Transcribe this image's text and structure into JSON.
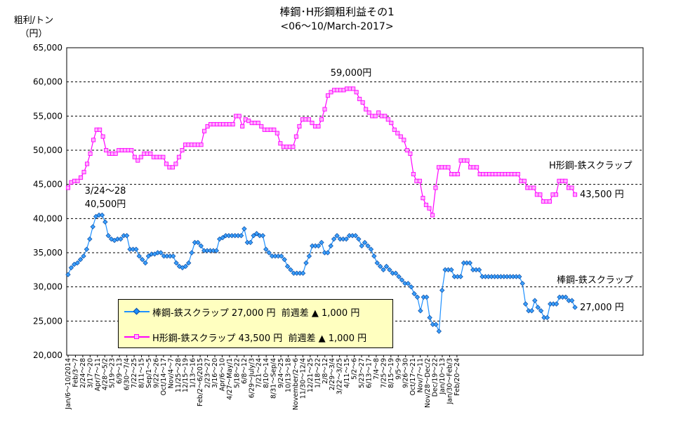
{
  "chart_data": {
    "type": "line",
    "title": "棒鋼･H形鋼粗利益その1",
    "subtitle": "<06～10/March-2017>",
    "ylabel_line1": "粗利/トン",
    "ylabel_line2": "（円）",
    "ylim": [
      20000,
      65000
    ],
    "yticks": [
      "20,000",
      "25,000",
      "30,000",
      "35,000",
      "40,000",
      "45,000",
      "50,000",
      "55,000",
      "60,000",
      "65,000"
    ],
    "grid": "horizontal-dashed",
    "x_tick_labels": [
      "Jan/6～10/2014",
      "Feb/3～7",
      "2/24～28",
      "3/17～20",
      "Apr/7～11",
      "4/28～5/2",
      "5/19～23",
      "6/9～13",
      "6/30～7/4",
      "7/22～25",
      "8/11～15",
      "Sep/1～5",
      "9/22～26",
      "Oct/14～17",
      "Nov/4～7",
      "11/25～28",
      "12/15～19",
      "1/13～16",
      "Feb/2～6/2015",
      "2/23～27",
      "3/16～20",
      "Apr/6～10",
      "4/27～May/1",
      "5/18～22",
      "6/8～12",
      "6/29～July/3",
      "7/21～24",
      "8/10～14",
      "8/31～Sep/4",
      "9/24～25",
      "10/13～18",
      "November/2～6",
      "11/30～12/4",
      "12/21～25",
      "1/18～22",
      "2/8～12",
      "2/29～3/4",
      "3/22～3/25",
      "4/11～15",
      "5/2～6",
      "5/23～27",
      "6/13～17",
      "7/4～8",
      "7/25～29",
      "8/15～19",
      "9/5～9",
      "9/26～30",
      "Oct/17～21",
      "Nov/7～11",
      "Nov/28～Dec/2",
      "Dec/19～22",
      "Jan/10～13",
      "Jan/30～Feb/3",
      "Feb/20～24"
    ],
    "series": [
      {
        "name": "H形鋼-鉄スクラップ",
        "color": "#ff00ff",
        "marker": "square",
        "values": [
          44500,
          45300,
          45500,
          45500,
          46000,
          46800,
          48000,
          49500,
          51500,
          53000,
          53000,
          52000,
          50000,
          49500,
          49500,
          49500,
          50000,
          50000,
          50000,
          50000,
          50000,
          49000,
          48500,
          49000,
          49500,
          49500,
          49500,
          49000,
          49000,
          49000,
          49000,
          48000,
          47500,
          47500,
          48000,
          49000,
          50000,
          50800,
          50800,
          50800,
          50800,
          50800,
          50800,
          52800,
          53500,
          53800,
          53800,
          53800,
          53800,
          53800,
          53800,
          53800,
          53800,
          55000,
          55000,
          53500,
          54500,
          54300,
          54000,
          54000,
          54000,
          53500,
          53000,
          53000,
          53000,
          53000,
          52500,
          51000,
          50500,
          50500,
          50500,
          50500,
          52000,
          53500,
          54500,
          54500,
          54500,
          54000,
          53500,
          53500,
          54500,
          56000,
          58000,
          58500,
          58800,
          58800,
          58800,
          58800,
          59000,
          59000,
          59000,
          58500,
          57500,
          57000,
          56000,
          55500,
          55000,
          55000,
          55500,
          55000,
          55000,
          54500,
          54000,
          53000,
          52500,
          52000,
          51500,
          50000,
          49500,
          46500,
          45500,
          45500,
          43000,
          42000,
          41500,
          40500,
          44500,
          47500,
          47500,
          47500,
          47500,
          46500,
          46500,
          46500,
          48500,
          48500,
          48500,
          47500,
          47500,
          47500,
          46500,
          46500,
          46500,
          46500,
          46500,
          46500,
          46500,
          46500,
          46500,
          46500,
          46500,
          46500,
          46500,
          45500,
          45500,
          44500,
          44500,
          44500,
          43500,
          43500,
          42500,
          42500,
          42500,
          43500,
          43500,
          45500,
          45500,
          45500,
          44500,
          44500,
          43500
        ]
      },
      {
        "name": "棒鋼-鉄スクラップ",
        "color": "#1e90ff",
        "marker": "diamond",
        "values": [
          31800,
          32800,
          33300,
          33500,
          34000,
          34500,
          35500,
          37000,
          38800,
          40300,
          40500,
          40500,
          39500,
          37500,
          37000,
          36800,
          37000,
          37000,
          37500,
          37500,
          35500,
          35500,
          35500,
          34500,
          34000,
          33500,
          34500,
          34800,
          34800,
          35000,
          35000,
          34500,
          34500,
          34500,
          34500,
          33500,
          33000,
          32800,
          33000,
          33500,
          35000,
          36500,
          36500,
          36000,
          35300,
          35300,
          35300,
          35300,
          35300,
          37000,
          37200,
          37500,
          37500,
          37500,
          37500,
          37500,
          37500,
          38500,
          36500,
          36500,
          37500,
          37800,
          37500,
          37500,
          35500,
          35000,
          34500,
          34500,
          34500,
          34500,
          34000,
          33000,
          32500,
          32000,
          32000,
          32000,
          32000,
          33500,
          34500,
          36000,
          36000,
          36000,
          36500,
          35000,
          35000,
          36000,
          37000,
          37500,
          37000,
          37000,
          37000,
          37500,
          37500,
          37500,
          37000,
          36000,
          36500,
          36000,
          35500,
          34500,
          33500,
          33000,
          32500,
          33000,
          32500,
          32000,
          32000,
          31500,
          31000,
          30500,
          30500,
          30000,
          29000,
          28500,
          26500,
          28500,
          28500,
          25500,
          24500,
          24500,
          23500,
          29500,
          32500,
          32500,
          32500,
          31500,
          31500,
          31500,
          33500,
          33500,
          33500,
          32500,
          32500,
          32500,
          31500,
          31500,
          31500,
          31500,
          31500,
          31500,
          31500,
          31500,
          31500,
          31500,
          31500,
          31500,
          31500,
          30500,
          27500,
          26500,
          26500,
          28000,
          27000,
          26500,
          25500,
          25500,
          27500,
          27500,
          27500,
          28500,
          28500,
          28500,
          28000,
          28000,
          27000
        ]
      }
    ],
    "annotations": {
      "a1": "59,000円",
      "a2": "3/24～28",
      "a3": "40,500円",
      "a4": "H形鋼-鉄スクラップ",
      "a5": "43,500 円",
      "a6": "棒鋼-鉄スクラップ",
      "a7": "27,000 円"
    },
    "legend": {
      "row1": "棒鋼-鉄スクラップ 27,000 円  前週差 ▲ 1,000 円",
      "row2": "H形鋼-鉄スクラップ 43,500 円  前週差 ▲ 1,000 円",
      "background": "#ffffc0",
      "placement": "bottom-left"
    }
  }
}
